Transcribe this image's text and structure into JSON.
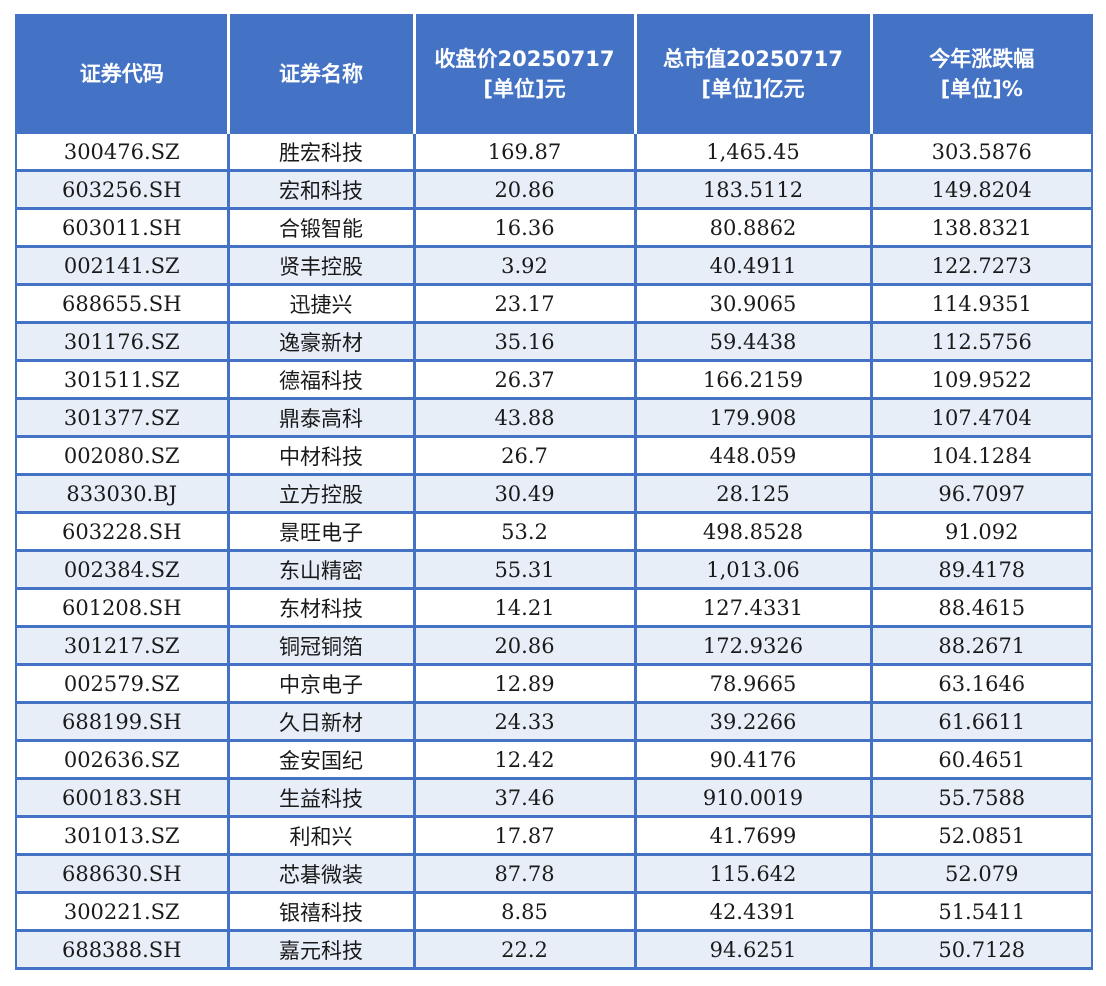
{
  "header": {
    "code": "证券代码",
    "name": "证券名称",
    "close_line1": "收盘价20250717",
    "close_line2": "[单位]元",
    "mktcap_line1": "总市值20250717",
    "mktcap_line2": "[单位]亿元",
    "ytd_line1": "今年涨跌幅",
    "ytd_line2": "[单位]%"
  },
  "rows": [
    {
      "code": "300476.SZ",
      "name": "胜宏科技",
      "close": "169.87",
      "mktcap": "1,465.45",
      "ytd": "303.5876"
    },
    {
      "code": "603256.SH",
      "name": "宏和科技",
      "close": "20.86",
      "mktcap": "183.5112",
      "ytd": "149.8204"
    },
    {
      "code": "603011.SH",
      "name": "合锻智能",
      "close": "16.36",
      "mktcap": "80.8862",
      "ytd": "138.8321"
    },
    {
      "code": "002141.SZ",
      "name": "贤丰控股",
      "close": "3.92",
      "mktcap": "40.4911",
      "ytd": "122.7273"
    },
    {
      "code": "688655.SH",
      "name": "迅捷兴",
      "close": "23.17",
      "mktcap": "30.9065",
      "ytd": "114.9351"
    },
    {
      "code": "301176.SZ",
      "name": "逸豪新材",
      "close": "35.16",
      "mktcap": "59.4438",
      "ytd": "112.5756"
    },
    {
      "code": "301511.SZ",
      "name": "德福科技",
      "close": "26.37",
      "mktcap": "166.2159",
      "ytd": "109.9522"
    },
    {
      "code": "301377.SZ",
      "name": "鼎泰高科",
      "close": "43.88",
      "mktcap": "179.908",
      "ytd": "107.4704"
    },
    {
      "code": "002080.SZ",
      "name": "中材科技",
      "close": "26.7",
      "mktcap": "448.059",
      "ytd": "104.1284"
    },
    {
      "code": "833030.BJ",
      "name": "立方控股",
      "close": "30.49",
      "mktcap": "28.125",
      "ytd": "96.7097"
    },
    {
      "code": "603228.SH",
      "name": "景旺电子",
      "close": "53.2",
      "mktcap": "498.8528",
      "ytd": "91.092"
    },
    {
      "code": "002384.SZ",
      "name": "东山精密",
      "close": "55.31",
      "mktcap": "1,013.06",
      "ytd": "89.4178"
    },
    {
      "code": "601208.SH",
      "name": "东材科技",
      "close": "14.21",
      "mktcap": "127.4331",
      "ytd": "88.4615"
    },
    {
      "code": "301217.SZ",
      "name": "铜冠铜箔",
      "close": "20.86",
      "mktcap": "172.9326",
      "ytd": "88.2671"
    },
    {
      "code": "002579.SZ",
      "name": "中京电子",
      "close": "12.89",
      "mktcap": "78.9665",
      "ytd": "63.1646"
    },
    {
      "code": "688199.SH",
      "name": "久日新材",
      "close": "24.33",
      "mktcap": "39.2266",
      "ytd": "61.6611"
    },
    {
      "code": "002636.SZ",
      "name": "金安国纪",
      "close": "12.42",
      "mktcap": "90.4176",
      "ytd": "60.4651"
    },
    {
      "code": "600183.SH",
      "name": "生益科技",
      "close": "37.46",
      "mktcap": "910.0019",
      "ytd": "55.7588"
    },
    {
      "code": "301013.SZ",
      "name": "利和兴",
      "close": "17.87",
      "mktcap": "41.7699",
      "ytd": "52.0851"
    },
    {
      "code": "688630.SH",
      "name": "芯碁微装",
      "close": "87.78",
      "mktcap": "115.642",
      "ytd": "52.079"
    },
    {
      "code": "300221.SZ",
      "name": "银禧科技",
      "close": "8.85",
      "mktcap": "42.4391",
      "ytd": "51.5411"
    },
    {
      "code": "688388.SH",
      "name": "嘉元科技",
      "close": "22.2",
      "mktcap": "94.6251",
      "ytd": "50.7128"
    }
  ]
}
